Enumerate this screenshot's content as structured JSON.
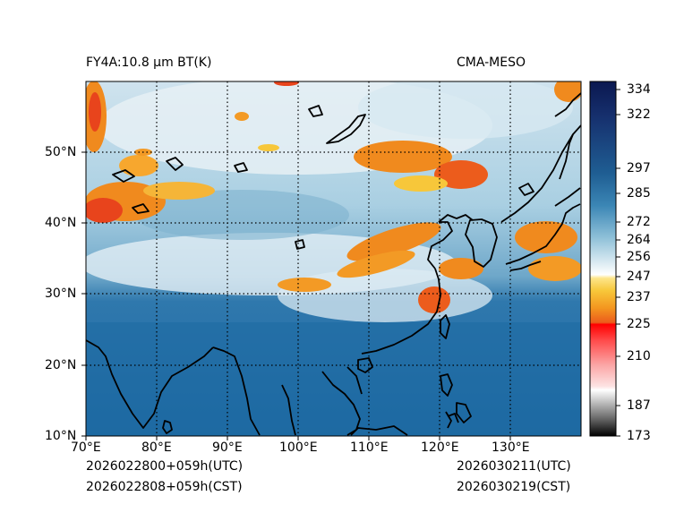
{
  "header": {
    "title_left": "FY4A:10.8 µm BT(K)",
    "title_right": "CMA-MESO"
  },
  "map": {
    "lon_labels": [
      "70°E",
      "80°E",
      "90°E",
      "100°E",
      "110°E",
      "120°E",
      "130°E"
    ],
    "lat_labels": [
      "50°N",
      "40°N",
      "30°N",
      "20°N",
      "10°N"
    ],
    "lon_range": [
      70,
      140
    ],
    "lat_range": [
      10,
      60
    ]
  },
  "colorbar": {
    "tick_labels": [
      "334",
      "322",
      "297",
      "285",
      "272",
      "264",
      "256",
      "247",
      "237",
      "225",
      "210",
      "187",
      "173"
    ],
    "range": [
      173,
      334
    ],
    "colors": {
      "deep_blue": "#0a1a4a",
      "mid_blue": "#1f6fa6",
      "light_blue": "#a9cfe0",
      "white": "#ffffff",
      "yellow": "#f7d23a",
      "orange": "#f08a1e",
      "red_orange": "#e8441c",
      "red": "#ff0000",
      "pink": "#fbc0c0",
      "gray": "#8a8a8a",
      "black": "#000000"
    }
  },
  "footer": {
    "init_utc": "2026022800+059h(UTC)",
    "init_cst": "2026022808+059h(CST)",
    "valid_utc": "2026030211(UTC)",
    "valid_cst": "2026030219(CST)"
  }
}
